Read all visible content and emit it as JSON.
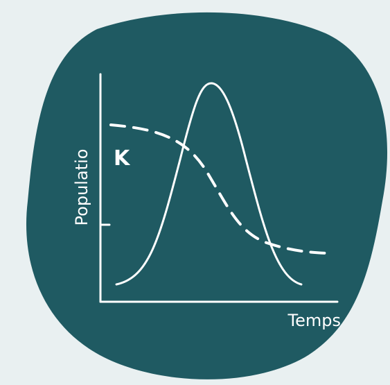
{
  "diagram": {
    "y_axis_label": "Populatio",
    "x_axis_label": "Temps",
    "k_label": "K"
  },
  "colors": {
    "page_background": "#e9f0f1",
    "blob_fill": "#1f5a62",
    "line": "#ffffff"
  }
}
